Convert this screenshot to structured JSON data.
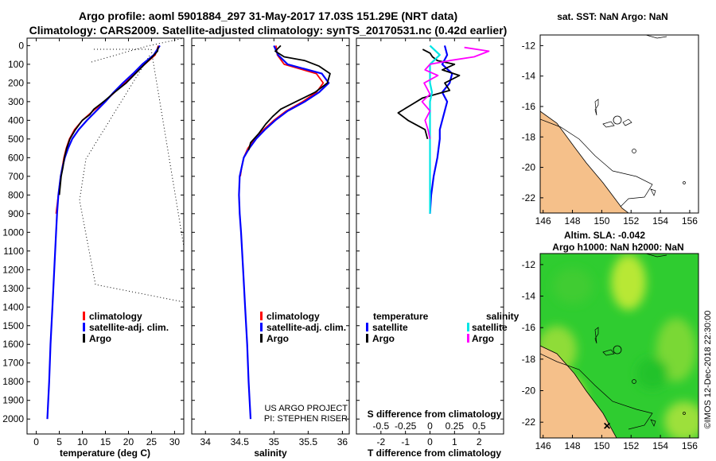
{
  "header": {
    "line1": "Argo profile: aoml 5901884_297 31-May-2017 17.03S 151.29E (NRT data)",
    "line2": "Climatology: CARS2009. Satellite-adjusted climatology: synTS_20170531.nc (0.42d earlier)"
  },
  "depth_ticks": [
    "0",
    "100",
    "200",
    "300",
    "400",
    "500",
    "600",
    "700",
    "800",
    "900",
    "1000",
    "1100",
    "1200",
    "1300",
    "1400",
    "1500",
    "1600",
    "1700",
    "1800",
    "1900",
    "2000"
  ],
  "colors": {
    "climatology": "#ff0000",
    "satellite": "#0000ff",
    "argo": "#000000",
    "sat_salinity": "#00e5e5",
    "argo_salinity": "#ff00ff",
    "land": "#f5c08a"
  },
  "chart_data": [
    {
      "type": "line",
      "name": "temperature",
      "xlabel": "temperature (deg C)",
      "xlim": [
        -2,
        32
      ],
      "ylim": [
        2080,
        -40
      ],
      "xticks": [
        "0",
        "5",
        "10",
        "15",
        "20",
        "25",
        "30"
      ],
      "legend": [
        "climatology",
        "satellite-adj. clim.",
        "Argo"
      ],
      "series": [
        {
          "name": "climatology",
          "depth": [
            0,
            50,
            100,
            150,
            200,
            250,
            300,
            350,
            400,
            450,
            500,
            550,
            600,
            700,
            800,
            900
          ],
          "values": [
            26.5,
            25.8,
            23.5,
            21.3,
            19.1,
            17.0,
            14.8,
            12.3,
            10.0,
            8.3,
            7.2,
            6.5,
            6.0,
            5.3,
            4.8,
            4.3
          ]
        },
        {
          "name": "satellite-adj. clim.",
          "depth": [
            0,
            50,
            100,
            150,
            200,
            250,
            300,
            350,
            400,
            450,
            500,
            550,
            600,
            650,
            700,
            800,
            900,
            1000,
            1200,
            1400,
            1600,
            1800,
            2000
          ],
          "values": [
            26.8,
            25.5,
            23.0,
            21.0,
            18.8,
            16.8,
            15.0,
            13.0,
            11.0,
            9.2,
            7.8,
            6.9,
            6.2,
            5.7,
            5.3,
            4.8,
            4.5,
            4.3,
            3.9,
            3.5,
            3.1,
            2.8,
            2.4
          ]
        },
        {
          "name": "Argo",
          "depth": [
            5,
            30,
            60,
            100,
            150,
            200,
            250,
            300,
            340,
            370,
            400,
            450,
            500,
            550,
            600,
            650,
            700,
            800
          ],
          "values": [
            26.5,
            26.3,
            25.2,
            23.5,
            21.5,
            19.5,
            17.0,
            14.6,
            12.5,
            11.6,
            10.0,
            8.5,
            7.3,
            6.6,
            6.1,
            5.8,
            5.4,
            5.0
          ]
        }
      ]
    },
    {
      "type": "line",
      "name": "salinity",
      "xlabel": "salinity",
      "xlim": [
        33.8,
        36.1
      ],
      "ylim": [
        2080,
        -40
      ],
      "xticks": [
        "34",
        "34.5",
        "35",
        "35.5",
        "36"
      ],
      "legend": [
        "climatology",
        "satellite-adj. clim.",
        "Argo"
      ],
      "credit": [
        "US ARGO PROJECT",
        "PI: STEPHEN RISER"
      ],
      "series": [
        {
          "name": "climatology",
          "depth": [
            0,
            50,
            100,
            150,
            200,
            250,
            300,
            350,
            400,
            450,
            500,
            550,
            600,
            650,
            700
          ],
          "values": [
            35.03,
            35.05,
            35.15,
            35.62,
            35.72,
            35.62,
            35.42,
            35.18,
            35.0,
            34.85,
            34.72,
            34.62,
            34.56,
            34.53,
            34.51
          ]
        },
        {
          "name": "satellite-adj. clim.",
          "depth": [
            0,
            50,
            100,
            150,
            200,
            250,
            300,
            350,
            400,
            450,
            500,
            550,
            600,
            700,
            800,
            900,
            1000,
            1200,
            1400,
            1600,
            1800,
            2000
          ],
          "values": [
            35.0,
            35.06,
            35.2,
            35.7,
            35.8,
            35.66,
            35.45,
            35.2,
            35.02,
            34.87,
            34.74,
            34.64,
            34.56,
            34.5,
            34.49,
            34.5,
            34.52,
            34.55,
            34.58,
            34.61,
            34.63,
            34.66
          ]
        },
        {
          "name": "Argo",
          "depth": [
            0,
            30,
            60,
            80,
            110,
            150,
            200,
            250,
            300,
            340,
            380,
            420,
            470,
            520,
            560
          ],
          "values": [
            35.1,
            35.02,
            35.15,
            35.45,
            35.66,
            35.82,
            35.78,
            35.6,
            35.32,
            35.1,
            34.98,
            34.88,
            34.78,
            34.66,
            34.63
          ]
        }
      ]
    },
    {
      "type": "line",
      "name": "difference",
      "xlabel": "T difference from climatology",
      "xlim": [
        -3,
        3
      ],
      "ylim": [
        2080,
        -40
      ],
      "xticks": [
        "-2",
        "-1",
        "0",
        "1",
        "2"
      ],
      "s_label": "S difference from climatology",
      "s_ticks": [
        "-0.5",
        "-0.25",
        "0",
        "0.25",
        "0.5"
      ],
      "legend_heads": [
        "temperature",
        "salinity"
      ],
      "legend_left": [
        "satellite",
        "Argo"
      ],
      "legend_right": [
        "satellite",
        "Argo"
      ],
      "series": [
        {
          "name": "T satellite",
          "depth": [
            0,
            50,
            100,
            150,
            200,
            250,
            300,
            350,
            400,
            450,
            500,
            600,
            700,
            800,
            900
          ],
          "values": [
            0.6,
            0.7,
            0.5,
            0.9,
            0.8,
            0.5,
            0.7,
            0.6,
            0.5,
            0.4,
            0.4,
            0.3,
            0.15,
            0.05,
            0.0
          ]
        },
        {
          "name": "T Argo",
          "depth": [
            20,
            40,
            60,
            80,
            100,
            130,
            160,
            200,
            240,
            280,
            320,
            360,
            400,
            450,
            500
          ],
          "values": [
            -0.3,
            0.0,
            0.1,
            0.3,
            1.0,
            0.5,
            1.2,
            0.6,
            0.8,
            -0.3,
            -0.8,
            -1.3,
            -0.9,
            -0.2,
            -0.1
          ]
        },
        {
          "name": "S satellite",
          "depth": [
            0,
            50,
            100,
            150,
            200,
            250,
            300,
            400,
            500,
            600,
            700,
            800,
            900
          ],
          "values": [
            0.0,
            0.1,
            0.0,
            0.0,
            0.0,
            0.02,
            0.0,
            0.0,
            0.0,
            0.0,
            0.0,
            0.0,
            0.0
          ]
        },
        {
          "name": "S Argo",
          "depth": [
            10,
            30,
            60,
            80,
            100,
            130,
            160,
            200,
            260,
            300,
            350,
            400,
            450,
            500
          ],
          "values": [
            0.35,
            0.6,
            0.45,
            0.2,
            0.0,
            -0.05,
            0.08,
            -0.06,
            0.0,
            -0.08,
            0.0,
            -0.05,
            -0.02,
            0.0
          ]
        }
      ]
    }
  ],
  "maps": {
    "sst": {
      "title": "sat. SST: NaN Argo: NaN",
      "xticks": [
        "146",
        "148",
        "150",
        "152",
        "154",
        "156"
      ],
      "yticks": [
        "-12",
        "-14",
        "-16",
        "-18",
        "-20",
        "-22"
      ]
    },
    "sla": {
      "title1": "Altim. SLA: -0.042",
      "title2": "Argo h1000: NaN h2000: NaN",
      "xticks": [
        "146",
        "148",
        "150",
        "152",
        "154",
        "156"
      ],
      "yticks": [
        "-12",
        "-14",
        "-16",
        "-18",
        "-20",
        "-22"
      ],
      "timestamp": "©IMOS 12-Dec-2018 22:30:00"
    }
  }
}
